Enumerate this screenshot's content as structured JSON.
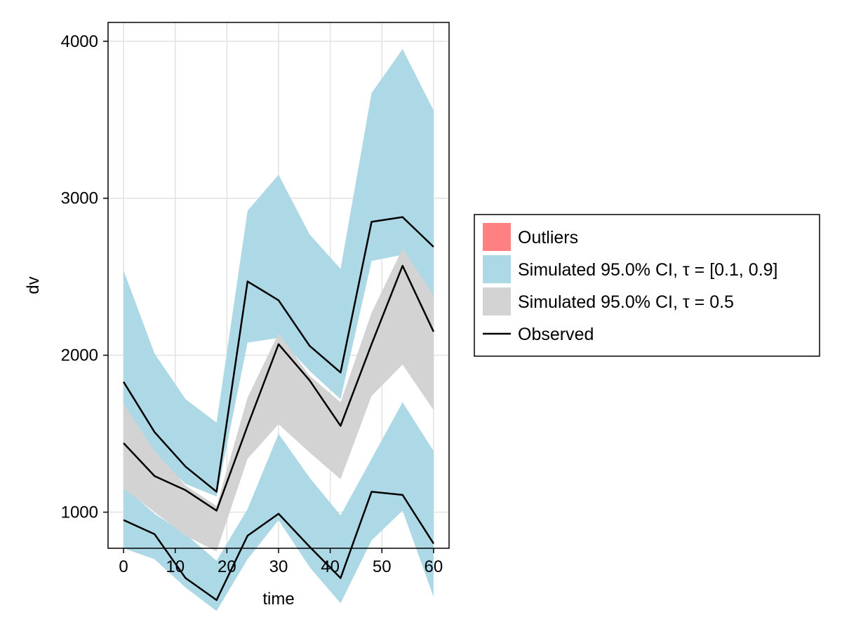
{
  "chart_data": {
    "type": "area",
    "xlabel": "time",
    "ylabel": "dv",
    "xlim": [
      -3,
      63
    ],
    "ylim": [
      770,
      4120
    ],
    "x_ticks": [
      0,
      10,
      20,
      30,
      40,
      50,
      60
    ],
    "y_ticks": [
      1000,
      2000,
      3000,
      4000
    ],
    "grid": true,
    "legend_position": "right",
    "x": [
      0,
      6,
      12,
      18,
      24,
      30,
      36,
      42,
      48,
      54,
      60
    ],
    "bands": [
      {
        "name": "Simulated 95.0% CI, τ = [0.1, 0.9]",
        "color": "#add8e6",
        "quantile": 0.9,
        "lower": [
          1680,
          1360,
          1180,
          1100,
          2080,
          2110,
          1900,
          1720,
          2600,
          2640,
          2380
        ],
        "upper": [
          2540,
          2010,
          1720,
          1570,
          2920,
          3150,
          2770,
          2550,
          3670,
          3950,
          3560
        ]
      },
      {
        "name": "Simulated 95.0% CI, τ = [0.1, 0.9]",
        "color": "#add8e6",
        "quantile": 0.1,
        "lower": [
          770,
          700,
          520,
          370,
          700,
          950,
          650,
          420,
          820,
          1010,
          460
        ],
        "upper": [
          1160,
          990,
          860,
          690,
          1020,
          1500,
          1220,
          980,
          1340,
          1700,
          1390
        ]
      },
      {
        "name": "Simulated 95.0% CI, τ = 0.5",
        "color": "#d3d3d3",
        "quantile": 0.5,
        "lower": [
          1150,
          1000,
          850,
          750,
          1340,
          1560,
          1380,
          1210,
          1740,
          1940,
          1650
        ],
        "upper": [
          1690,
          1390,
          1170,
          1040,
          1730,
          2140,
          1870,
          1700,
          2270,
          2680,
          2380
        ]
      }
    ],
    "series": [
      {
        "name": "Observed",
        "color": "#000000",
        "values": [
          1830,
          1510,
          1290,
          1130,
          2470,
          2350,
          2060,
          1890,
          2850,
          2880,
          2690
        ]
      },
      {
        "name": "Observed",
        "color": "#000000",
        "values": [
          1440,
          1230,
          1140,
          1010,
          1550,
          2070,
          1840,
          1550,
          2070,
          2570,
          2150
        ]
      },
      {
        "name": "Observed",
        "color": "#000000",
        "values": [
          950,
          860,
          580,
          440,
          850,
          990,
          780,
          580,
          1130,
          1110,
          800
        ]
      }
    ],
    "legend": [
      {
        "label": "Outliers",
        "color": "#ff8080",
        "kind": "patch"
      },
      {
        "label": "Simulated 95.0% CI, τ = [0.1, 0.9]",
        "color": "#add8e6",
        "kind": "patch"
      },
      {
        "label": "Simulated 95.0% CI, τ = 0.5",
        "color": "#d3d3d3",
        "kind": "patch"
      },
      {
        "label": "Observed",
        "color": "#000000",
        "kind": "line"
      }
    ]
  }
}
